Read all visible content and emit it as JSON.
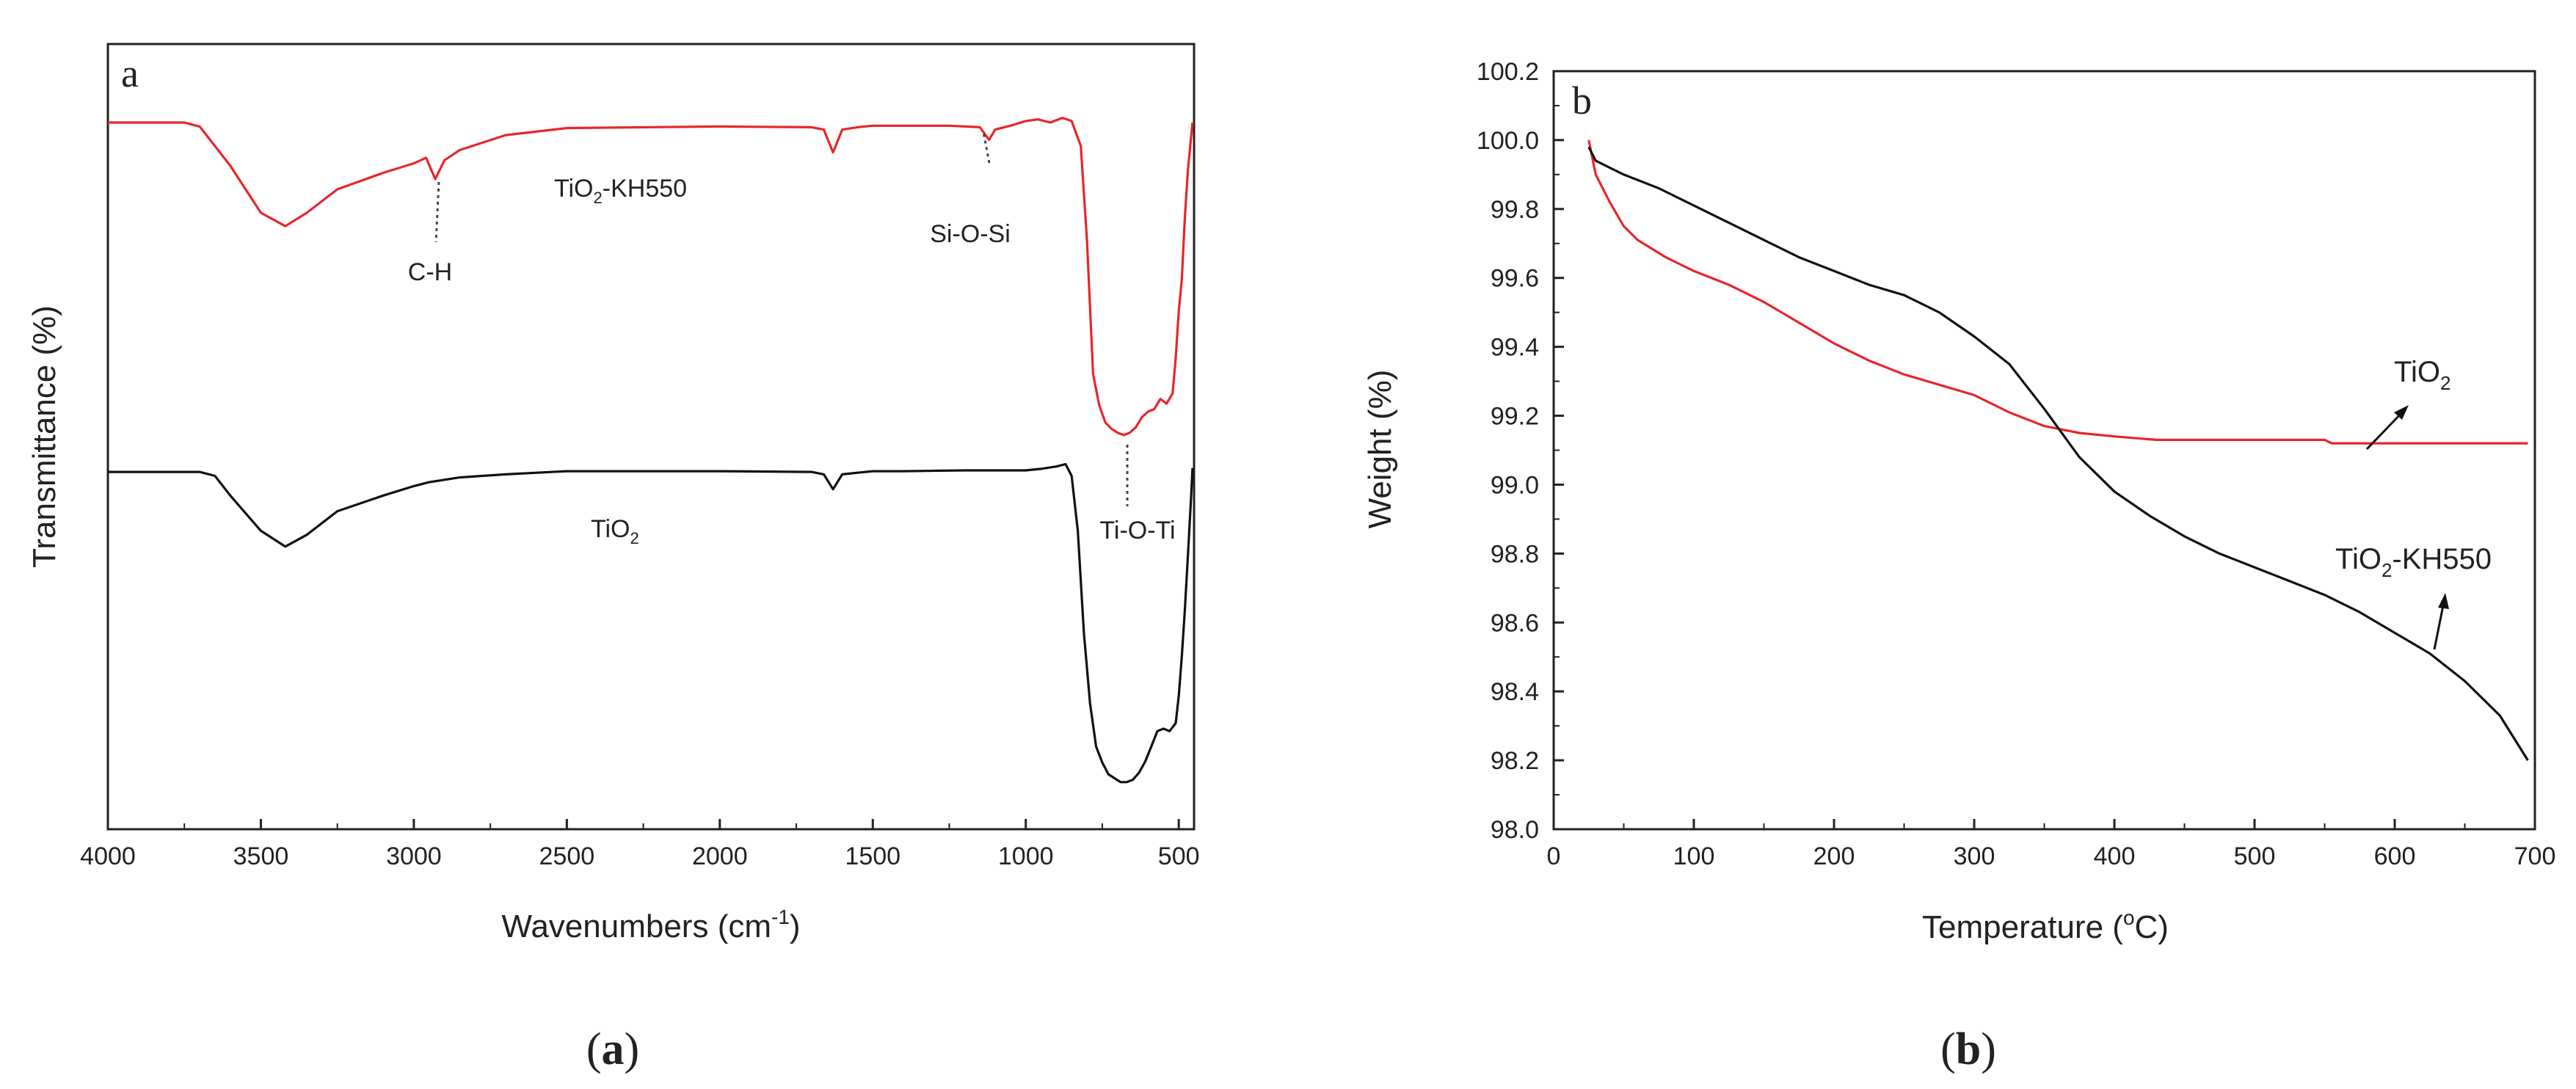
{
  "chart_data": [
    {
      "id": "ftir",
      "type": "line",
      "panel_letter": "a",
      "caption": "(a)",
      "caption_letter": "a",
      "xlabel": "Wavenumbers (cm",
      "xlabel_sup": "-1",
      "xlabel_end": ")",
      "ylabel": "Transmittance (%)",
      "xlim": [
        4000,
        450
      ],
      "xticks": [
        "4000",
        "3500",
        "3000",
        "2500",
        "2000",
        "1500",
        "1000",
        "500"
      ],
      "ylim": [
        0,
        100
      ],
      "yticks_shown": false,
      "series": [
        {
          "name": "TiO2-KH550",
          "label_main": "TiO",
          "label_sub": "2",
          "label_tail": "-KH550",
          "color": "#e8262a",
          "x": [
            4000,
            3750,
            3700,
            3600,
            3500,
            3420,
            3350,
            3250,
            3100,
            3000,
            2960,
            2930,
            2900,
            2850,
            2700,
            2500,
            2000,
            1700,
            1660,
            1630,
            1600,
            1550,
            1500,
            1400,
            1250,
            1150,
            1120,
            1100,
            1050,
            1000,
            960,
            920,
            880,
            850,
            820,
            800,
            780,
            760,
            740,
            720,
            700,
            680,
            660,
            640,
            620,
            600,
            580,
            560,
            540,
            520,
            510,
            500,
            490,
            480,
            470,
            460,
            455
          ],
          "y": [
            90,
            90,
            89.5,
            84.5,
            78.5,
            76.8,
            78.5,
            81.5,
            83.6,
            84.8,
            85.5,
            82.8,
            85.2,
            86.5,
            88.4,
            89.3,
            89.5,
            89.4,
            89.1,
            86.2,
            89.1,
            89.4,
            89.6,
            89.6,
            89.6,
            89.4,
            87.8,
            89.1,
            89.6,
            90.2,
            90.4,
            90.0,
            90.6,
            90.2,
            87.0,
            75.0,
            58.0,
            54.0,
            51.8,
            51.0,
            50.5,
            50.2,
            50.5,
            51.2,
            52.5,
            53.2,
            53.5,
            54.8,
            54.2,
            55.5,
            60.0,
            66.0,
            70.0,
            78.0,
            84.0,
            88.0,
            90.0
          ]
        },
        {
          "name": "TiO2",
          "label_main": "TiO",
          "label_sub": "2",
          "label_tail": "",
          "color": "#111111",
          "x": [
            4000,
            3700,
            3650,
            3600,
            3500,
            3420,
            3350,
            3250,
            3100,
            3000,
            2950,
            2900,
            2850,
            2700,
            2500,
            2000,
            1700,
            1660,
            1630,
            1600,
            1550,
            1500,
            1400,
            1200,
            1000,
            950,
            900,
            870,
            850,
            830,
            810,
            790,
            770,
            750,
            730,
            710,
            690,
            670,
            650,
            630,
            610,
            590,
            570,
            550,
            530,
            510,
            500,
            490,
            480,
            470,
            460,
            455
          ],
          "y": [
            45.5,
            45.5,
            45.0,
            42.5,
            38.0,
            36.0,
            37.5,
            40.5,
            42.5,
            43.7,
            44.2,
            44.5,
            44.8,
            45.2,
            45.6,
            45.6,
            45.5,
            45.2,
            43.3,
            45.2,
            45.4,
            45.6,
            45.6,
            45.7,
            45.7,
            45.9,
            46.2,
            46.5,
            45.0,
            38.0,
            25.0,
            16.0,
            10.5,
            8.5,
            7.0,
            6.5,
            6.0,
            6.0,
            6.3,
            7.2,
            8.6,
            10.5,
            12.5,
            12.8,
            12.5,
            13.5,
            17.0,
            22.0,
            28.0,
            35.0,
            42.0,
            46.0
          ]
        }
      ],
      "annotations": [
        {
          "text": "C-H",
          "at_x": 2920
        },
        {
          "text": "Si-O-Si",
          "at_x": 1120
        },
        {
          "text": "Ti-O-Ti",
          "at_x": 670
        }
      ]
    },
    {
      "id": "tga",
      "type": "line",
      "panel_letter": "b",
      "caption": "(b)",
      "caption_letter": "b",
      "xlabel": "Temperature (",
      "xlabel_sup": "o",
      "xlabel_end": "C)",
      "ylabel": "Weight (%)",
      "xlim": [
        0,
        700
      ],
      "xticks": [
        "0",
        "100",
        "200",
        "300",
        "400",
        "500",
        "600",
        "700"
      ],
      "ylim": [
        98.0,
        100.2
      ],
      "yticks": [
        "98.0",
        "98.2",
        "98.4",
        "98.6",
        "98.8",
        "99.0",
        "99.2",
        "99.4",
        "99.6",
        "99.8",
        "100.0",
        "100.2"
      ],
      "series": [
        {
          "name": "TiO2",
          "label_main": "TiO",
          "label_sub": "2",
          "label_tail": "",
          "color": "#e8262a",
          "x": [
            25,
            30,
            40,
            50,
            60,
            80,
            100,
            125,
            150,
            175,
            200,
            225,
            250,
            275,
            300,
            325,
            350,
            375,
            400,
            430,
            500,
            550,
            555,
            600,
            650,
            695
          ],
          "y": [
            100.0,
            99.9,
            99.82,
            99.75,
            99.71,
            99.66,
            99.62,
            99.58,
            99.53,
            99.47,
            99.41,
            99.36,
            99.32,
            99.29,
            99.26,
            99.21,
            99.17,
            99.15,
            99.14,
            99.13,
            99.13,
            99.13,
            99.12,
            99.12,
            99.12,
            99.12
          ]
        },
        {
          "name": "TiO2-KH550",
          "label_main": "TiO",
          "label_sub": "2",
          "label_tail": "-KH550",
          "color": "#111111",
          "x": [
            25,
            30,
            50,
            75,
            100,
            125,
            150,
            175,
            200,
            225,
            250,
            275,
            300,
            325,
            350,
            375,
            400,
            425,
            450,
            475,
            500,
            525,
            550,
            575,
            600,
            625,
            650,
            675,
            695
          ],
          "y": [
            99.98,
            99.94,
            99.9,
            99.86,
            99.81,
            99.76,
            99.71,
            99.66,
            99.62,
            99.58,
            99.55,
            99.5,
            99.43,
            99.35,
            99.22,
            99.08,
            98.98,
            98.91,
            98.85,
            98.8,
            98.76,
            98.72,
            98.68,
            98.63,
            98.57,
            98.51,
            98.43,
            98.33,
            98.2
          ]
        }
      ],
      "annotations": [
        {
          "series": "TiO2",
          "at_x": 640
        },
        {
          "series": "TiO2-KH550",
          "at_x": 625
        }
      ]
    }
  ]
}
